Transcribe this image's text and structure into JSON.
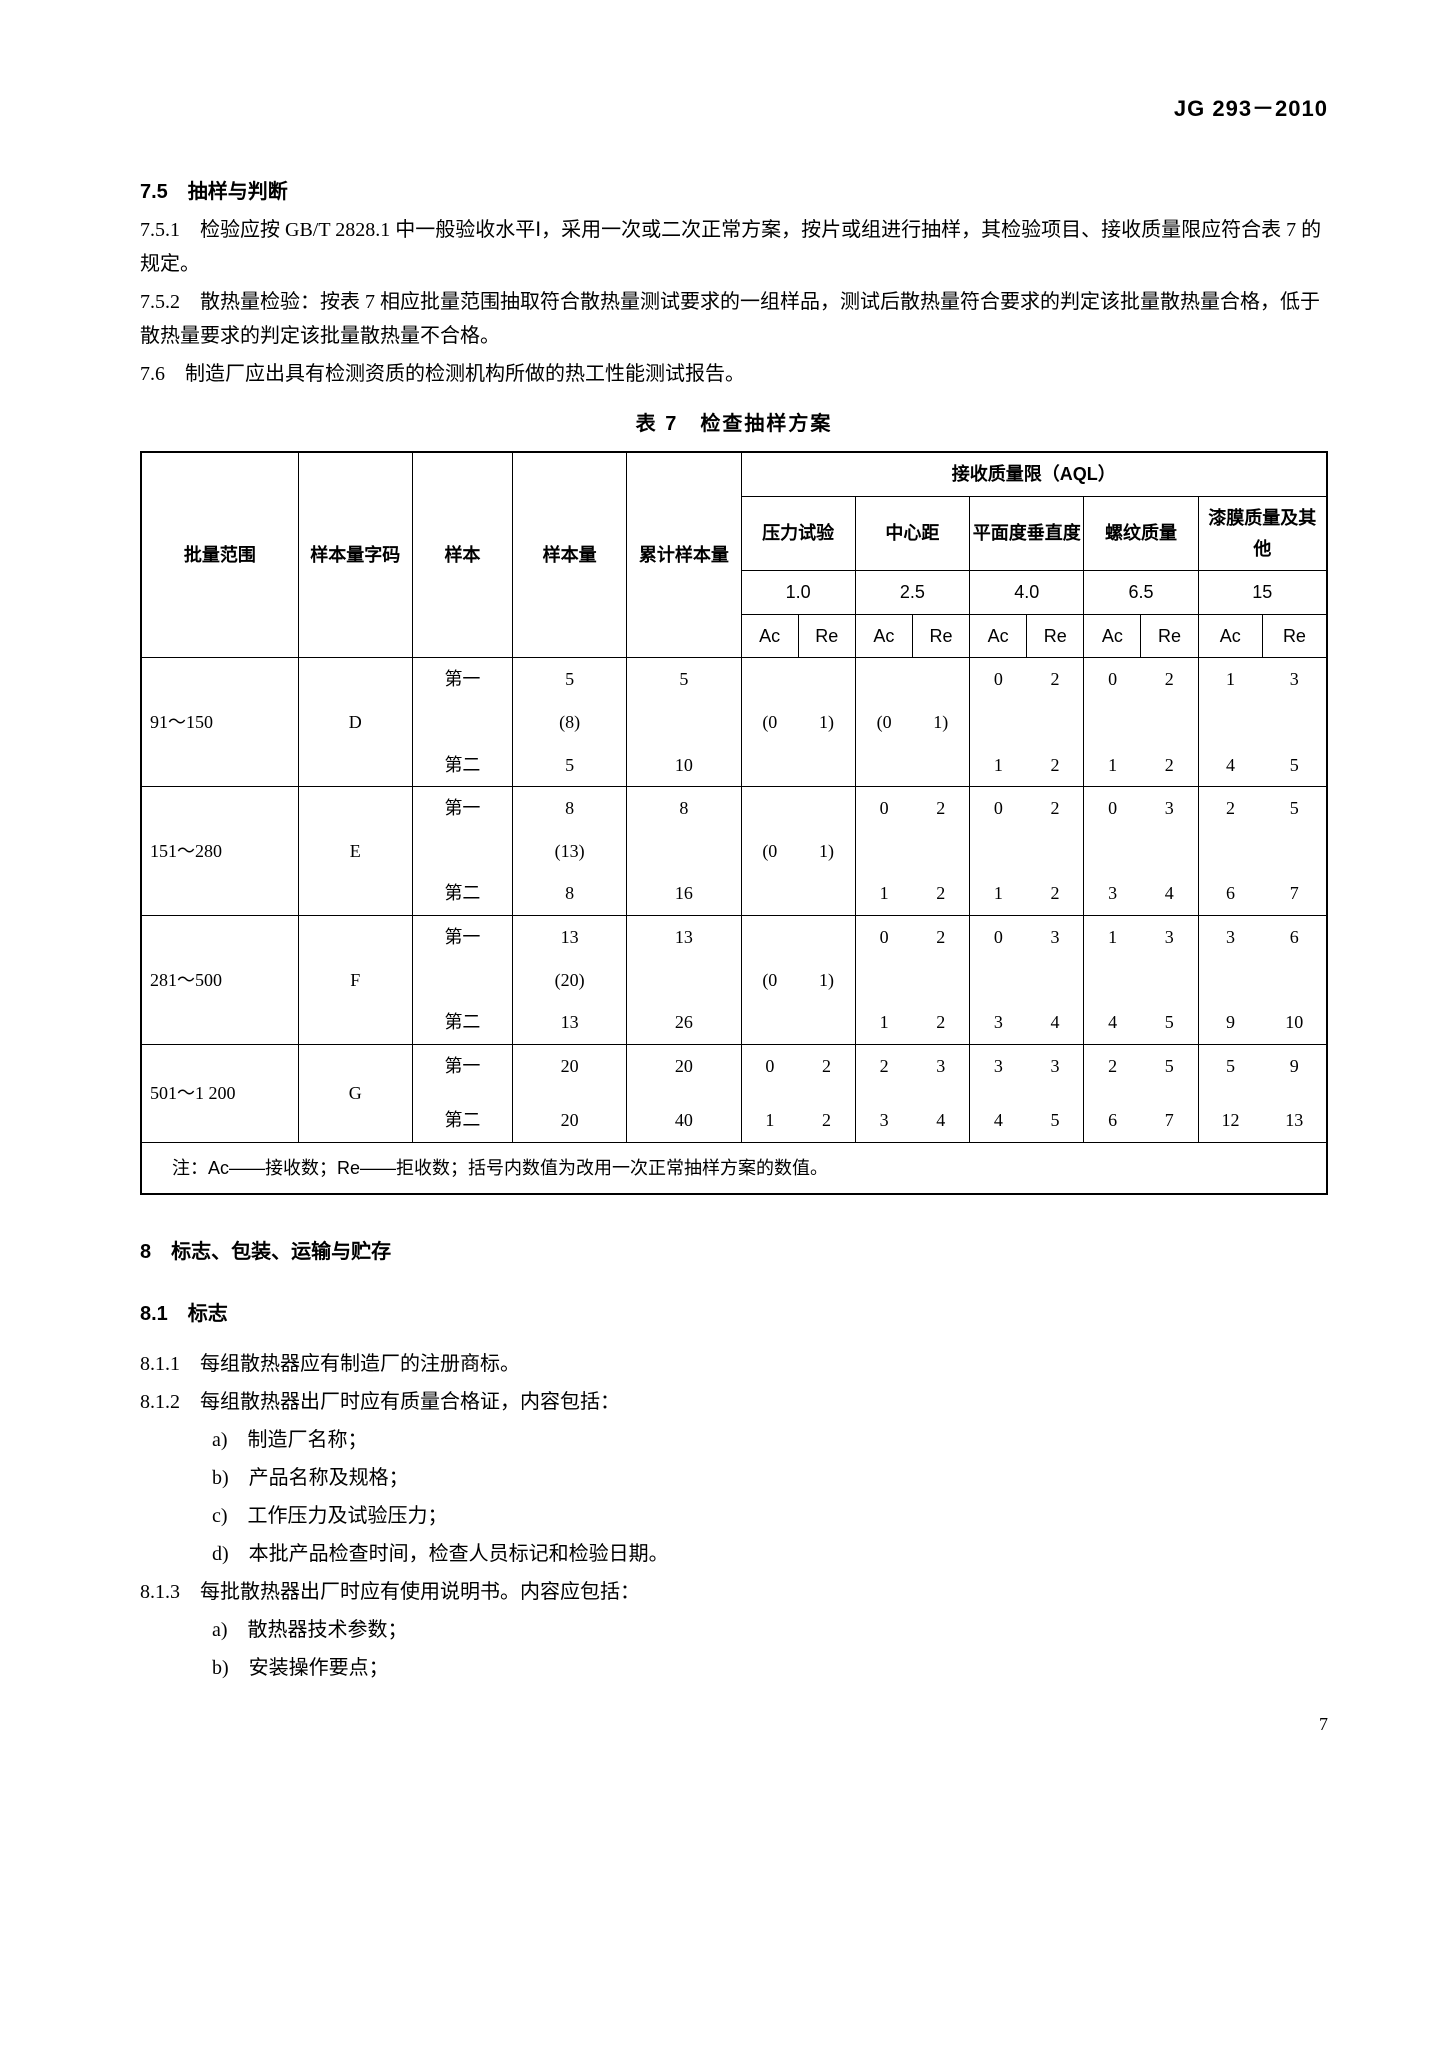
{
  "header": {
    "code": "JG 293－2010"
  },
  "s75_title": "7.5　抽样与判断",
  "s751": "7.5.1　检验应按 GB/T 2828.1 中一般验收水平Ⅰ，采用一次或二次正常方案，按片或组进行抽样，其检验项目、接收质量限应符合表 7 的规定。",
  "s752": "7.5.2　散热量检验：按表 7 相应批量范围抽取符合散热量测试要求的一组样品，测试后散热量符合要求的判定该批量散热量合格，低于散热量要求的判定该批量散热量不合格。",
  "s76": "7.6　制造厂应出具有检测资质的检测机构所做的热工性能测试报告。",
  "table7": {
    "caption": "表 7　检查抽样方案",
    "head": {
      "c1": "批量范围",
      "c2": "样本量字码",
      "c3": "样本",
      "c4": "样本量",
      "c5": "累计样本量",
      "aql": "接收质量限（AQL）",
      "g1": "压力试验",
      "g2": "中心距",
      "g3": "平面度垂直度",
      "g4": "螺纹质量",
      "g5": "漆膜质量及其他",
      "v1": "1.0",
      "v2": "2.5",
      "v3": "4.0",
      "v4": "6.5",
      "v5": "15",
      "ac": "Ac",
      "re": "Re"
    },
    "rows": [
      {
        "range": "91～150",
        "code": "D",
        "paren": "(8)",
        "r1": {
          "sample": "第一",
          "n": "5",
          "cum": "5",
          "g1": {
            "ac": "(0",
            "re": "1)",
            "cls": "mid"
          },
          "g2": {
            "ac": "(0",
            "re": "1)",
            "cls": "mid"
          },
          "g3": {
            "ac": "0",
            "re": "2"
          },
          "g4": {
            "ac": "0",
            "re": "2"
          },
          "g5": {
            "ac": "1",
            "re": "3"
          }
        },
        "r2": {
          "sample": "第二",
          "n": "5",
          "cum": "10",
          "g3": {
            "ac": "1",
            "re": "2"
          },
          "g4": {
            "ac": "1",
            "re": "2"
          },
          "g5": {
            "ac": "4",
            "re": "5"
          }
        }
      },
      {
        "range": "151～280",
        "code": "E",
        "paren": "(13)",
        "r1": {
          "sample": "第一",
          "n": "8",
          "cum": "8",
          "g1": {
            "ac": "(0",
            "re": "1)",
            "cls": "mid"
          },
          "g2": {
            "ac": "0",
            "re": "2"
          },
          "g3": {
            "ac": "0",
            "re": "2"
          },
          "g4": {
            "ac": "0",
            "re": "3"
          },
          "g5": {
            "ac": "2",
            "re": "5"
          }
        },
        "r2": {
          "sample": "第二",
          "n": "8",
          "cum": "16",
          "g2": {
            "ac": "1",
            "re": "2"
          },
          "g3": {
            "ac": "1",
            "re": "2"
          },
          "g4": {
            "ac": "3",
            "re": "4"
          },
          "g5": {
            "ac": "6",
            "re": "7"
          }
        }
      },
      {
        "range": "281～500",
        "code": "F",
        "paren": "(20)",
        "r1": {
          "sample": "第一",
          "n": "13",
          "cum": "13",
          "g1": {
            "ac": "(0",
            "re": "1)",
            "cls": "mid"
          },
          "g2": {
            "ac": "0",
            "re": "2"
          },
          "g3": {
            "ac": "0",
            "re": "3"
          },
          "g4": {
            "ac": "1",
            "re": "3"
          },
          "g5": {
            "ac": "3",
            "re": "6"
          }
        },
        "r2": {
          "sample": "第二",
          "n": "13",
          "cum": "26",
          "g2": {
            "ac": "1",
            "re": "2"
          },
          "g3": {
            "ac": "3",
            "re": "4"
          },
          "g4": {
            "ac": "4",
            "re": "5"
          },
          "g5": {
            "ac": "9",
            "re": "10"
          }
        }
      },
      {
        "range": "501～1 200",
        "code": "G",
        "paren": "",
        "r1": {
          "sample": "第一",
          "n": "20",
          "cum": "20",
          "g1": {
            "ac": "0",
            "re": "2"
          },
          "g2": {
            "ac": "2",
            "re": "3"
          },
          "g3": {
            "ac": "3",
            "re": "3"
          },
          "g4": {
            "ac": "2",
            "re": "5"
          },
          "g5": {
            "ac": "5",
            "re": "9"
          }
        },
        "r2": {
          "sample": "第二",
          "n": "20",
          "cum": "40",
          "g1": {
            "ac": "1",
            "re": "2"
          },
          "g2": {
            "ac": "3",
            "re": "4"
          },
          "g3": {
            "ac": "4",
            "re": "5"
          },
          "g4": {
            "ac": "6",
            "re": "7"
          },
          "g5": {
            "ac": "12",
            "re": "13"
          }
        }
      }
    ],
    "note": "注：Ac——接收数；Re——拒收数；括号内数值为改用一次正常抽样方案的数值。"
  },
  "s8": "8　标志、包装、运输与贮存",
  "s81": "8.1　标志",
  "s811": "8.1.1　每组散热器应有制造厂的注册商标。",
  "s812": "8.1.2　每组散热器出厂时应有质量合格证，内容包括：",
  "s812_items": [
    "a)　制造厂名称；",
    "b)　产品名称及规格；",
    "c)　工作压力及试验压力；",
    "d)　本批产品检查时间，检查人员标记和检验日期。"
  ],
  "s813": "8.1.3　每批散热器出厂时应有使用说明书。内容应包括：",
  "s813_items": [
    "a)　散热器技术参数；",
    "b)　安装操作要点；"
  ],
  "pagenum": "7"
}
